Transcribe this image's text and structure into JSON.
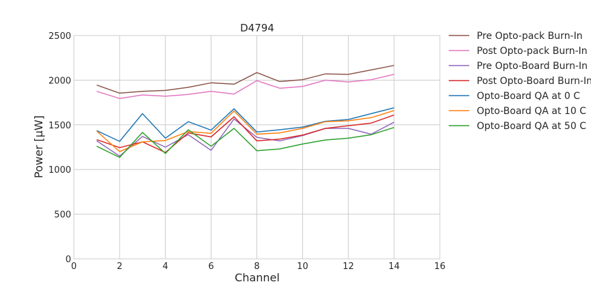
{
  "chart_data": {
    "type": "line",
    "title": "D4794",
    "xlabel": "Channel",
    "ylabel": "Power [μW]",
    "xlim": [
      0,
      16
    ],
    "ylim": [
      0,
      2500
    ],
    "xticks": [
      0,
      2,
      4,
      6,
      8,
      10,
      12,
      14,
      16
    ],
    "yticks": [
      0,
      500,
      1000,
      1500,
      2000,
      2500
    ],
    "grid": true,
    "legend_position": "outside-right",
    "x": [
      1,
      2,
      3,
      4,
      5,
      6,
      7,
      8,
      9,
      10,
      11,
      12,
      13,
      14
    ],
    "series": [
      {
        "name": "Pre Opto-pack Burn-In",
        "color": "#8c564b",
        "values": [
          1945,
          1855,
          1875,
          1885,
          1920,
          1970,
          1955,
          2085,
          1985,
          2005,
          2070,
          2065,
          2115,
          2165
        ]
      },
      {
        "name": "Post Opto-pack Burn-In",
        "color": "#e377c2",
        "values": [
          1875,
          1795,
          1835,
          1820,
          1840,
          1875,
          1845,
          1995,
          1910,
          1930,
          2000,
          1980,
          2005,
          2065
        ]
      },
      {
        "name": "Pre Opto-Board Burn-In",
        "color": "#9467bd",
        "values": [
          1320,
          1150,
          1370,
          1250,
          1390,
          1215,
          1565,
          1360,
          1320,
          1380,
          1460,
          1460,
          1395,
          1530
        ]
      },
      {
        "name": "Post Opto-Board Burn-In",
        "color": "#d62728",
        "values": [
          1335,
          1245,
          1310,
          1190,
          1410,
          1365,
          1590,
          1320,
          1340,
          1385,
          1460,
          1490,
          1520,
          1610
        ]
      },
      {
        "name": "Opto-Board QA at 0 C",
        "color": "#1f77b4",
        "values": [
          1435,
          1315,
          1625,
          1350,
          1535,
          1440,
          1680,
          1420,
          1445,
          1475,
          1540,
          1560,
          1625,
          1690
        ]
      },
      {
        "name": "Opto-Board QA at 10 C",
        "color": "#ff7f0e",
        "values": [
          1430,
          1200,
          1310,
          1325,
          1425,
          1405,
          1655,
          1395,
          1410,
          1460,
          1535,
          1545,
          1580,
          1660
        ]
      },
      {
        "name": "Opto-Board QA at 50 C",
        "color": "#2ca02c",
        "values": [
          1260,
          1135,
          1415,
          1180,
          1445,
          1260,
          1460,
          1210,
          1230,
          1285,
          1330,
          1350,
          1390,
          1470
        ]
      }
    ]
  }
}
